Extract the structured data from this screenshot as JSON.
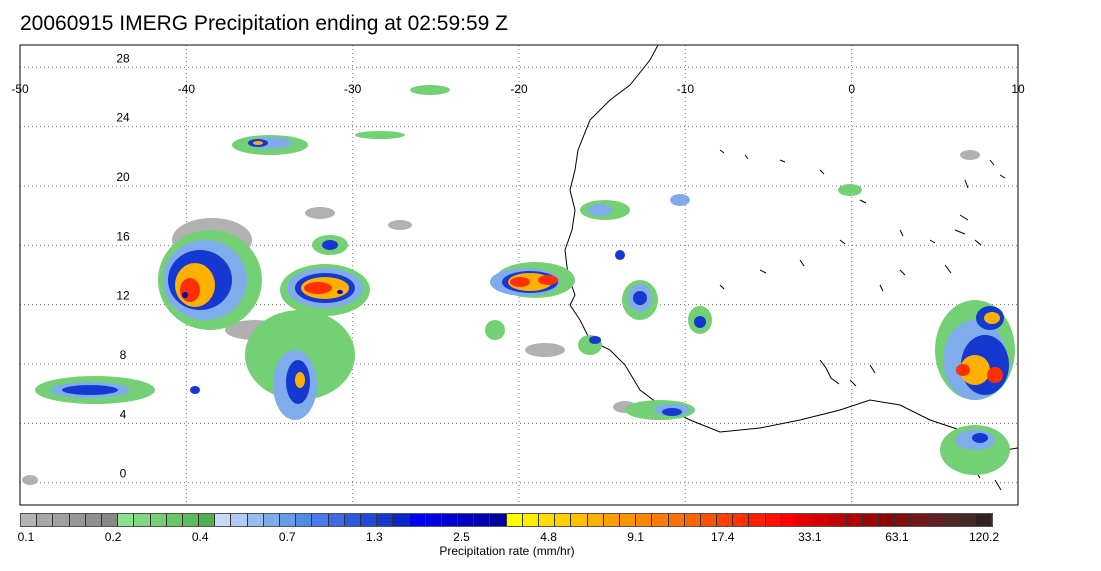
{
  "title": "20060915 IMERG Precipitation ending at 02:59:59 Z",
  "map": {
    "lon_range": [
      -50,
      10
    ],
    "lat_range": [
      -1.5,
      29.5
    ],
    "lon_ticks": [
      "-50",
      "-40",
      "-30",
      "-20",
      "-10",
      "0",
      "10"
    ],
    "lat_ticks": [
      "28",
      "24",
      "20",
      "16",
      "12",
      "8",
      "4",
      "0"
    ],
    "grid": "dotted"
  },
  "colorbar": {
    "title": "Precipitation rate (mm/hr)",
    "tick_labels": [
      "0.1",
      "0.2",
      "0.4",
      "0.7",
      "1.3",
      "2.5",
      "4.8",
      "9.1",
      "17.4",
      "33.1",
      "63.1",
      "120.2"
    ],
    "colors": [
      "#b4b4b4",
      "#a8a8a8",
      "#a0a0a0",
      "#989898",
      "#909090",
      "#888888",
      "#8ce08c",
      "#80d880",
      "#74d074",
      "#68c868",
      "#5cbc5c",
      "#50b050",
      "#c8dcf8",
      "#b0ccf4",
      "#98bcf0",
      "#80acec",
      "#689ce8",
      "#508ce4",
      "#4a7cf0",
      "#3c6ae8",
      "#2c58e0",
      "#2048d8",
      "#1438d0",
      "#0828c8",
      "#0000f0",
      "#0000e0",
      "#0000d0",
      "#0000c0",
      "#0000b0",
      "#0000a0",
      "#ffff00",
      "#fff000",
      "#ffe000",
      "#ffd000",
      "#ffc000",
      "#ffb000",
      "#ffa000",
      "#ff9400",
      "#ff8800",
      "#ff7c00",
      "#ff7000",
      "#ff6400",
      "#ff5000",
      "#ff4000",
      "#ff3000",
      "#ff2000",
      "#ff1000",
      "#ff0000",
      "#e00000",
      "#d00000",
      "#c00000",
      "#b00000",
      "#a00000",
      "#900000",
      "#801010",
      "#701818",
      "#602020",
      "#502828",
      "#402828",
      "#302020"
    ]
  }
}
